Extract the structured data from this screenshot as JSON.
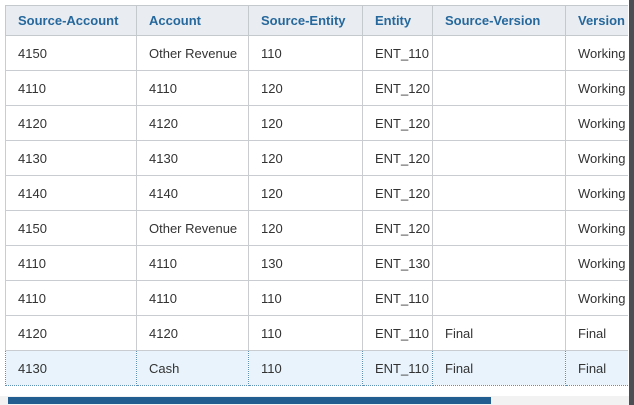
{
  "table": {
    "columns": [
      {
        "key": "source-account",
        "label": "Source-Account"
      },
      {
        "key": "account",
        "label": "Account"
      },
      {
        "key": "source-entity",
        "label": "Source-Entity"
      },
      {
        "key": "entity",
        "label": "Entity"
      },
      {
        "key": "source-version",
        "label": "Source-Version"
      },
      {
        "key": "version",
        "label": "Version"
      }
    ],
    "rows": [
      [
        "4150",
        "Other Revenue",
        "110",
        "ENT_110",
        "",
        "Working"
      ],
      [
        "4110",
        "4110",
        "120",
        "ENT_120",
        "",
        "Working"
      ],
      [
        "4120",
        "4120",
        "120",
        "ENT_120",
        "",
        "Working"
      ],
      [
        "4130",
        "4130",
        "120",
        "ENT_120",
        "",
        "Working"
      ],
      [
        "4140",
        "4140",
        "120",
        "ENT_120",
        "",
        "Working"
      ],
      [
        "4150",
        "Other Revenue",
        "120",
        "ENT_120",
        "",
        "Working"
      ],
      [
        "4110",
        "4110",
        "130",
        "ENT_130",
        "",
        "Working"
      ],
      [
        "4110",
        "4110",
        "110",
        "ENT_110",
        "",
        "Working"
      ],
      [
        "4120",
        "4120",
        "110",
        "ENT_110",
        "Final",
        "Final"
      ],
      [
        "4130",
        "Cash",
        "110",
        "ENT_110",
        "Final",
        "Final"
      ]
    ],
    "selected_row_index": 9
  },
  "colors": {
    "header_bg": "#e9edf2",
    "header_text": "#26689c",
    "border": "#c9cdd2",
    "selected_bg": "#e8f3fb",
    "selected_border": "#5e8fb5",
    "scrollbar_thumb": "#235e91"
  }
}
